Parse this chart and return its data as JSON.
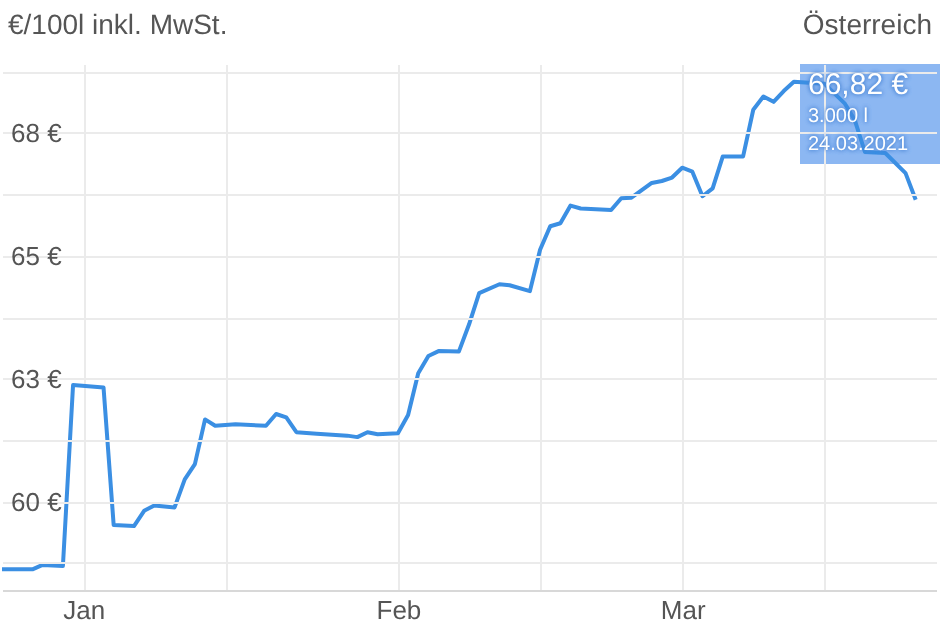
{
  "chart_data": {
    "type": "line",
    "title": "Österreich",
    "ylabel": "€/100l inkl. MwSt.",
    "x": [
      "2020-12-24",
      "2020-12-27",
      "2020-12-28",
      "2020-12-30",
      "2020-12-31",
      "2021-01-03",
      "2021-01-04",
      "2021-01-06",
      "2021-01-07",
      "2021-01-08",
      "2021-01-10",
      "2021-01-11",
      "2021-01-12",
      "2021-01-13",
      "2021-01-14",
      "2021-01-16",
      "2021-01-19",
      "2021-01-20",
      "2021-01-21",
      "2021-01-22",
      "2021-01-24",
      "2021-01-27",
      "2021-01-28",
      "2021-01-29",
      "2021-01-30",
      "2021-02-01",
      "2021-02-02",
      "2021-02-03",
      "2021-02-04",
      "2021-02-05",
      "2021-02-07",
      "2021-02-08",
      "2021-02-09",
      "2021-02-11",
      "2021-02-12",
      "2021-02-14",
      "2021-02-15",
      "2021-02-16",
      "2021-02-17",
      "2021-02-18",
      "2021-02-19",
      "2021-02-22",
      "2021-02-23",
      "2021-02-24",
      "2021-02-26",
      "2021-02-27",
      "2021-02-28",
      "2021-03-01",
      "2021-03-02",
      "2021-03-03",
      "2021-03-04",
      "2021-03-05",
      "2021-03-07",
      "2021-03-08",
      "2021-03-09",
      "2021-03-10",
      "2021-03-11",
      "2021-03-12",
      "2021-03-15",
      "2021-03-17",
      "2021-03-18",
      "2021-03-19",
      "2021-03-21",
      "2021-03-23",
      "2021-03-24"
    ],
    "series": [
      {
        "color": "#3b8fe3",
        "values": [
          58.62,
          58.62,
          58.71,
          58.69,
          62.37,
          62.32,
          59.52,
          59.5,
          59.81,
          59.92,
          59.88,
          60.45,
          60.76,
          61.67,
          61.54,
          61.57,
          61.54,
          61.78,
          61.71,
          61.41,
          61.38,
          61.34,
          61.31,
          61.41,
          61.37,
          61.39,
          61.76,
          62.61,
          62.96,
          63.06,
          63.05,
          63.6,
          64.24,
          64.42,
          64.4,
          64.28,
          65.12,
          65.6,
          65.66,
          66.02,
          65.96,
          65.93,
          66.17,
          66.18,
          66.48,
          66.52,
          66.59,
          66.79,
          66.71,
          66.21,
          66.37,
          67.02,
          67.02,
          67.97,
          68.24,
          68.13,
          68.35,
          68.54,
          68.5,
          68.1,
          67.76,
          67.11,
          67.09,
          66.68,
          66.14
        ]
      }
    ],
    "xlim": [
      "2020-12-24",
      "2021-03-26"
    ],
    "xticks": [
      {
        "value": "2021-01-01",
        "label": "Jan"
      },
      {
        "value": "2021-01-15",
        "label": null
      },
      {
        "value": "2021-02-01",
        "label": "Feb"
      },
      {
        "value": "2021-02-15",
        "label": null
      },
      {
        "value": "2021-03-01",
        "label": "Mar"
      },
      {
        "value": "2021-03-15",
        "label": null
      }
    ],
    "ylim": [
      58.2,
      68.9
    ],
    "yticks": [
      {
        "value": 58.75,
        "label": null
      },
      {
        "value": 60,
        "label": "60 €"
      },
      {
        "value": 61.25,
        "label": null
      },
      {
        "value": 62.5,
        "label": "63 €"
      },
      {
        "value": 63.75,
        "label": null
      },
      {
        "value": 65,
        "label": "65 €"
      },
      {
        "value": 66.25,
        "label": null
      },
      {
        "value": 67.5,
        "label": "68 €"
      },
      {
        "value": 68.75,
        "label": null
      }
    ],
    "grid": true,
    "annotations": [
      "66,82 €",
      "3.000 l",
      "24.03.2021"
    ]
  }
}
